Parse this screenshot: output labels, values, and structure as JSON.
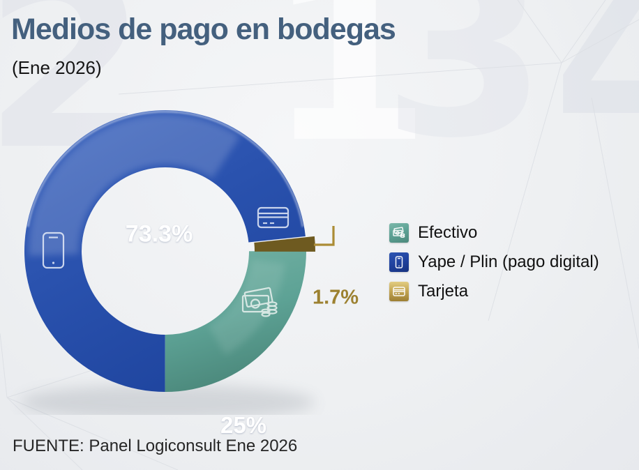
{
  "header": {
    "title": "Medios de pago en bodegas",
    "subtitle": "(Ene 2026)"
  },
  "chart_data": {
    "type": "pie",
    "variant": "donut",
    "title": "Medios de pago en bodegas",
    "period": "Ene 2026",
    "unit": "%",
    "legend_position": "right",
    "start_angle_deg": 84,
    "slices": [
      {
        "label": "Yape / Plin (pago digital)",
        "value": 73.3,
        "display": "73.3%",
        "color": "#2a52ae",
        "icon": "smartphone-icon"
      },
      {
        "label": "Efectivo",
        "value": 25,
        "display": "25%",
        "color": "#5da295",
        "icon": "cash-icon"
      },
      {
        "label": "Tarjeta",
        "value": 1.7,
        "display": "1.7%",
        "color": "#c9ab53",
        "icon": "credit-card-icon"
      }
    ]
  },
  "legend": {
    "items": [
      {
        "label": "Efectivo",
        "color": "#5da295",
        "icon": "cash-icon"
      },
      {
        "label": "Yape / Plin (pago digital)",
        "color": "#1e3f9e",
        "icon": "smartphone-icon"
      },
      {
        "label": "Tarjeta",
        "color": "#c9ab53",
        "icon": "credit-card-icon"
      }
    ]
  },
  "footer": {
    "source": "FUENTE: Panel Logiconsult Ene 2026"
  },
  "watermark": {
    "digits": [
      "2",
      "1",
      "3",
      "4"
    ]
  }
}
